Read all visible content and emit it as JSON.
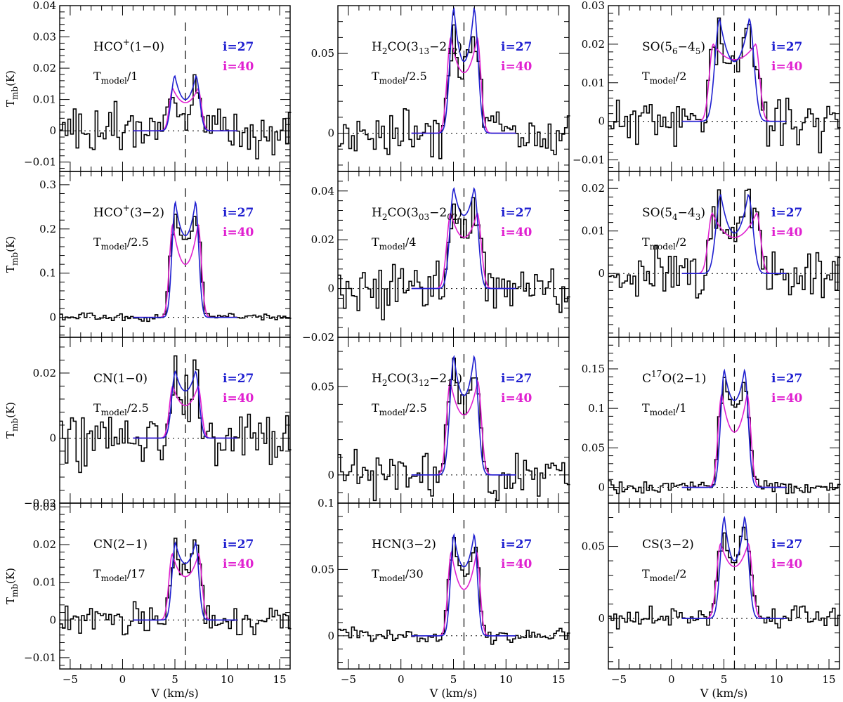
{
  "figure": {
    "xlabel": "V (km/s)",
    "ylabel_main": "T",
    "ylabel_sub": "mb",
    "ylabel_unit": "(K)"
  },
  "chart_data": [
    {
      "type": "line",
      "id": "hco10",
      "title": "HCO",
      "title_sup": "+",
      "title_suffix": "(1−0)",
      "scale_main": "T",
      "scale_sub": "model",
      "scale_div": "/1",
      "legend": [
        "i=27",
        "i=40"
      ],
      "xlim": [
        -6,
        16
      ],
      "ylim": [
        -0.013,
        0.04
      ],
      "xticks": [
        -5,
        0,
        5,
        10,
        15
      ],
      "yticks": [
        -0.01,
        0,
        0.01,
        0.02,
        0.03,
        0.04
      ],
      "ytick_labels": [
        "−0.01",
        "0",
        "0.01",
        "0.02",
        "0.03",
        "0.04"
      ],
      "peak27": 0.0175,
      "dip27": 0.01,
      "peak40": 0.0135,
      "dip40": 0.009,
      "v0": 6,
      "sep27": 2.0,
      "sep40": 2.4,
      "w27": 0.55,
      "w40": 0.5,
      "noise": 0.007,
      "seed": 3,
      "show_xlabels": false,
      "show_ylabel": true
    },
    {
      "type": "line",
      "id": "h2co313",
      "title": "H",
      "title_sub": "2",
      "title_mid": "CO(3",
      "title_sub2": "13",
      "title_dash": "−2",
      "title_sub3": "12",
      "title_end": ")",
      "scale_main": "T",
      "scale_sub": "model",
      "scale_div": "/2.5",
      "legend": [
        "i=27",
        "i=40"
      ],
      "xlim": [
        -6,
        16
      ],
      "ylim": [
        -0.024,
        0.08
      ],
      "xticks": [
        -5,
        0,
        5,
        10,
        15
      ],
      "yticks": [
        0,
        0.05
      ],
      "ytick_labels": [
        "0",
        "0.05"
      ],
      "peak27": 0.078,
      "dip27": 0.045,
      "peak40": 0.06,
      "dip40": 0.038,
      "v0": 6,
      "sep27": 1.9,
      "sep40": 2.5,
      "w27": 0.6,
      "w40": 0.55,
      "noise": 0.014,
      "seed": 7,
      "show_xlabels": false,
      "show_ylabel": false
    },
    {
      "type": "line",
      "id": "so5645",
      "title": "SO(5",
      "title_sub": "6",
      "title_mid": "−4",
      "title_sub2": "5",
      "title_end": ")",
      "scale_main": "T",
      "scale_sub": "model",
      "scale_div": "/2",
      "legend": [
        "i=27",
        "i=40"
      ],
      "xlim": [
        -6,
        16
      ],
      "ylim": [
        -0.013,
        0.03
      ],
      "xticks": [
        -5,
        0,
        5,
        10,
        15
      ],
      "yticks": [
        -0.01,
        0,
        0.01,
        0.02,
        0.03
      ],
      "ytick_labels": [
        "−0.01",
        "0",
        "0.01",
        "0.02",
        "0.03"
      ],
      "peak27": 0.0265,
      "dip27": 0.0155,
      "peak40": 0.02,
      "dip40": 0.016,
      "v0": 6,
      "sep27": 2.8,
      "sep40": 4.0,
      "w27": 0.7,
      "w40": 0.6,
      "noise": 0.006,
      "seed": 11,
      "show_xlabels": false,
      "show_ylabel": false
    },
    {
      "type": "line",
      "id": "hco32",
      "title": "HCO",
      "title_sup": "+",
      "title_suffix": "(3−2)",
      "scale_main": "T",
      "scale_sub": "model",
      "scale_div": "/2.5",
      "legend": [
        "i=27",
        "i=40"
      ],
      "xlim": [
        -6,
        16
      ],
      "ylim": [
        -0.045,
        0.33
      ],
      "xticks": [
        -5,
        0,
        5,
        10,
        15
      ],
      "yticks": [
        0,
        0.1,
        0.2,
        0.3
      ],
      "ytick_labels": [
        "0",
        "0.1",
        "0.2",
        "0.3"
      ],
      "peak27": 0.26,
      "dip27": 0.185,
      "peak40": 0.21,
      "dip40": 0.12,
      "v0": 6,
      "sep27": 1.9,
      "sep40": 2.4,
      "w27": 0.5,
      "w40": 0.5,
      "noise": 0.01,
      "seed": 5,
      "show_xlabels": false,
      "show_ylabel": true
    },
    {
      "type": "line",
      "id": "h2co303",
      "title": "H",
      "title_sub": "2",
      "title_mid": "CO(3",
      "title_sub2": "03",
      "title_dash": "−2",
      "title_sub3": "02",
      "title_end": ")",
      "scale_main": "T",
      "scale_sub": "model",
      "scale_div": "/4",
      "legend": [
        "i=27",
        "i=40"
      ],
      "xlim": [
        -6,
        16
      ],
      "ylim": [
        -0.02,
        0.048
      ],
      "xticks": [
        -5,
        0,
        5,
        10,
        15
      ],
      "yticks": [
        -0.02,
        0,
        0.02,
        0.04
      ],
      "ytick_labels": [
        "−0.02",
        "0",
        "0.02",
        "0.04"
      ],
      "peak27": 0.041,
      "dip27": 0.03,
      "peak40": 0.031,
      "dip40": 0.021,
      "v0": 6,
      "sep27": 1.9,
      "sep40": 2.5,
      "w27": 0.6,
      "w40": 0.6,
      "noise": 0.011,
      "seed": 13,
      "show_xlabels": false,
      "show_ylabel": false
    },
    {
      "type": "line",
      "id": "so5443",
      "title": "SO(5",
      "title_sub": "4",
      "title_mid": "−4",
      "title_sub2": "3",
      "title_end": ")",
      "scale_main": "T",
      "scale_sub": "model",
      "scale_div": "/2",
      "legend": [
        "i=27",
        "i=40"
      ],
      "xlim": [
        -6,
        16
      ],
      "ylim": [
        -0.015,
        0.024
      ],
      "xticks": [
        -5,
        0,
        5,
        10,
        15
      ],
      "yticks": [
        0,
        0.01,
        0.02
      ],
      "ytick_labels": [
        "0",
        "0.01",
        "0.02"
      ],
      "peak27": 0.0185,
      "dip27": 0.0095,
      "peak40": 0.0142,
      "dip40": 0.0085,
      "v0": 6,
      "sep27": 2.6,
      "sep40": 4.2,
      "w27": 0.7,
      "w40": 0.6,
      "noise": 0.006,
      "seed": 17,
      "show_xlabels": false,
      "show_ylabel": false
    },
    {
      "type": "line",
      "id": "cn10",
      "title": "CN(1−0)",
      "scale_main": "T",
      "scale_sub": "model",
      "scale_div": "/2.5",
      "legend": [
        "i=27",
        "i=40"
      ],
      "xlim": [
        -6,
        16
      ],
      "ylim": [
        -0.02,
        0.031
      ],
      "xticks": [
        -5,
        0,
        5,
        10,
        15
      ],
      "yticks": [
        -0.02,
        0,
        0.02
      ],
      "ytick_labels": [
        "−0.02",
        "0",
        "0.02"
      ],
      "peak27": 0.0205,
      "dip27": 0.0145,
      "peak40": 0.016,
      "dip40": 0.01,
      "v0": 6,
      "sep27": 1.9,
      "sep40": 2.4,
      "w27": 0.55,
      "w40": 0.5,
      "noise": 0.009,
      "seed": 19,
      "show_xlabels": false,
      "show_ylabel": true
    },
    {
      "type": "line",
      "id": "h2co312",
      "title": "H",
      "title_sub": "2",
      "title_mid": "CO(3",
      "title_sub2": "12",
      "title_dash": "−2",
      "title_sub3": "11",
      "title_end": ")",
      "scale_main": "T",
      "scale_sub": "model",
      "scale_div": "/2.5",
      "legend": [
        "i=27",
        "i=40"
      ],
      "xlim": [
        -6,
        16
      ],
      "ylim": [
        -0.016,
        0.078
      ],
      "xticks": [
        -5,
        0,
        5,
        10,
        15
      ],
      "yticks": [
        0,
        0.05
      ],
      "ytick_labels": [
        "0",
        "0.05"
      ],
      "peak27": 0.067,
      "dip27": 0.045,
      "peak40": 0.053,
      "dip40": 0.034,
      "v0": 6,
      "sep27": 1.9,
      "sep40": 2.6,
      "w27": 0.6,
      "w40": 0.55,
      "noise": 0.012,
      "seed": 23,
      "show_xlabels": false,
      "show_ylabel": false
    },
    {
      "type": "line",
      "id": "c17o21",
      "title": "C",
      "title_sup": "17",
      "title_suffix": "O(2−1)",
      "scale_main": "T",
      "scale_sub": "model",
      "scale_div": "/1",
      "legend": [
        "i=27",
        "i=40"
      ],
      "xlim": [
        -6,
        16
      ],
      "ylim": [
        -0.02,
        0.19
      ],
      "xticks": [
        -5,
        0,
        5,
        10,
        15
      ],
      "yticks": [
        0,
        0.05,
        0.1,
        0.15
      ],
      "ytick_labels": [
        "0",
        "0.05",
        "0.1",
        "0.15"
      ],
      "peak27": 0.148,
      "dip27": 0.11,
      "peak40": 0.118,
      "dip40": 0.07,
      "v0": 6,
      "sep27": 1.9,
      "sep40": 2.4,
      "w27": 0.55,
      "w40": 0.55,
      "noise": 0.008,
      "seed": 29,
      "show_xlabels": false,
      "show_ylabel": false
    },
    {
      "type": "line",
      "id": "cn21",
      "title": "CN(2−1)",
      "scale_main": "T",
      "scale_sub": "model",
      "scale_div": "/17",
      "legend": [
        "i=27",
        "i=40"
      ],
      "xlim": [
        -6,
        16
      ],
      "ylim": [
        -0.013,
        0.031
      ],
      "xticks": [
        -5,
        0,
        5,
        10,
        15
      ],
      "yticks": [
        -0.01,
        0,
        0.01,
        0.02,
        0.03
      ],
      "ytick_labels": [
        "−0.01",
        "0",
        "0.01",
        "0.02",
        "0.03"
      ],
      "peak27": 0.0205,
      "dip27": 0.015,
      "peak40": 0.0175,
      "dip40": 0.0115,
      "v0": 6,
      "sep27": 1.9,
      "sep40": 2.5,
      "w27": 0.5,
      "w40": 0.5,
      "noise": 0.004,
      "seed": 31,
      "show_xlabels": true,
      "show_ylabel": true
    },
    {
      "type": "line",
      "id": "hcn32",
      "title": "HCN(3−2)",
      "scale_main": "T",
      "scale_sub": "model",
      "scale_div": "/30",
      "legend": [
        "i=27",
        "i=40"
      ],
      "xlim": [
        -6,
        16
      ],
      "ylim": [
        -0.025,
        0.1
      ],
      "xticks": [
        -5,
        0,
        5,
        10,
        15
      ],
      "yticks": [
        0,
        0.05,
        0.1
      ],
      "ytick_labels": [
        "0",
        "0.05",
        "0.1"
      ],
      "peak27": 0.076,
      "dip27": 0.052,
      "peak40": 0.063,
      "dip40": 0.035,
      "v0": 6,
      "sep27": 1.9,
      "sep40": 2.4,
      "w27": 0.5,
      "w40": 0.5,
      "noise": 0.006,
      "seed": 37,
      "show_xlabels": true,
      "show_ylabel": false
    },
    {
      "type": "line",
      "id": "cs32",
      "title": "CS(3−2)",
      "scale_main": "T",
      "scale_sub": "model",
      "scale_div": "/2",
      "legend": [
        "i=27",
        "i=40"
      ],
      "xlim": [
        -6,
        16
      ],
      "ylim": [
        -0.035,
        0.08
      ],
      "xticks": [
        -5,
        0,
        5,
        10,
        15
      ],
      "yticks": [
        0,
        0.05
      ],
      "ytick_labels": [
        "0",
        "0.05"
      ],
      "peak27": 0.07,
      "dip27": 0.04,
      "peak40": 0.052,
      "dip40": 0.036,
      "v0": 6,
      "sep27": 1.9,
      "sep40": 2.6,
      "w27": 0.6,
      "w40": 0.6,
      "noise": 0.008,
      "seed": 41,
      "show_xlabels": true,
      "show_ylabel": false
    }
  ],
  "colors": {
    "i27": "#1f1fd0",
    "i40": "#e020d0",
    "obs": "#000000"
  }
}
